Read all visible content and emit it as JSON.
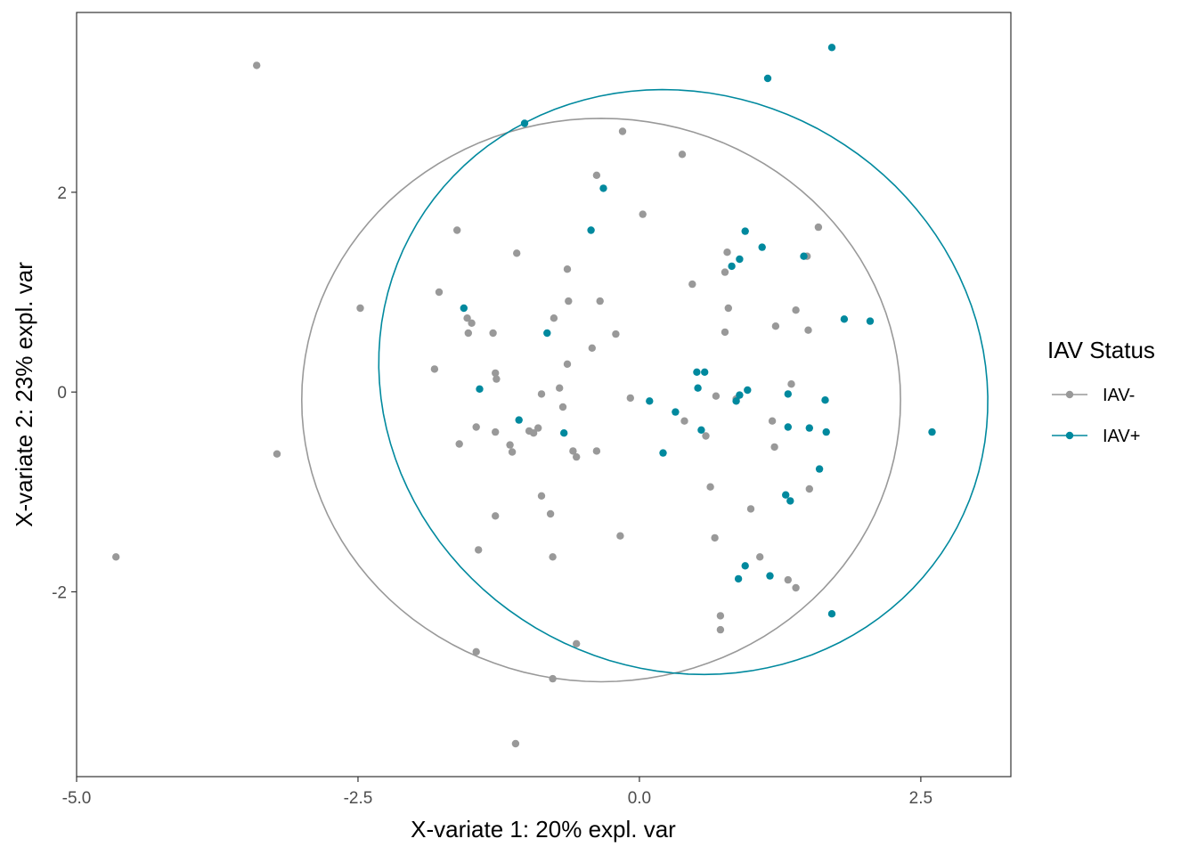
{
  "chart_data": {
    "type": "scatter",
    "xlabel": "X-variate 1: 20% expl. var",
    "ylabel": "X-variate 2: 23% expl. var",
    "xlim": [
      -5.0,
      3.3
    ],
    "ylim": [
      -3.85,
      3.8
    ],
    "x_ticks": [
      -5.0,
      -2.5,
      0.0,
      2.5
    ],
    "x_tick_labels": [
      "-5.0",
      "-2.5",
      "0.0",
      "2.5"
    ],
    "y_ticks": [
      -2,
      0,
      2
    ],
    "y_tick_labels": [
      "-2",
      "0",
      "2"
    ],
    "grid": false,
    "legend": {
      "title": "IAV Status",
      "placement": "right"
    },
    "series": [
      {
        "name": "IAV-",
        "color": "#999999",
        "ellipse": {
          "cx": -0.34,
          "cy": -0.08,
          "rx": 2.66,
          "ry": 2.82,
          "angle_deg": 0
        },
        "points": [
          [
            -3.4,
            3.27
          ],
          [
            -4.65,
            -1.65
          ],
          [
            -3.22,
            -0.62
          ],
          [
            -2.48,
            0.84
          ],
          [
            -1.78,
            1.0
          ],
          [
            -1.82,
            0.23
          ],
          [
            -1.62,
            1.62
          ],
          [
            -1.6,
            -0.52
          ],
          [
            -1.53,
            0.74
          ],
          [
            -1.52,
            0.59
          ],
          [
            -1.49,
            0.69
          ],
          [
            -1.45,
            -0.35
          ],
          [
            -1.43,
            -1.58
          ],
          [
            -1.45,
            -2.6
          ],
          [
            -1.3,
            0.59
          ],
          [
            -1.28,
            0.19
          ],
          [
            -1.27,
            0.13
          ],
          [
            -1.28,
            -0.4
          ],
          [
            -1.28,
            -1.24
          ],
          [
            -1.15,
            -0.53
          ],
          [
            -1.13,
            -0.6
          ],
          [
            -1.09,
            1.39
          ],
          [
            -1.1,
            -3.52
          ],
          [
            -0.98,
            -0.39
          ],
          [
            -0.94,
            -0.41
          ],
          [
            -0.9,
            -0.36
          ],
          [
            -0.87,
            -0.02
          ],
          [
            -0.87,
            -1.04
          ],
          [
            -0.79,
            -1.22
          ],
          [
            -0.77,
            -1.65
          ],
          [
            -0.77,
            -2.87
          ],
          [
            -0.76,
            0.74
          ],
          [
            -0.71,
            0.04
          ],
          [
            -0.68,
            -0.15
          ],
          [
            -0.64,
            1.23
          ],
          [
            -0.63,
            0.91
          ],
          [
            -0.64,
            0.28
          ],
          [
            -0.59,
            -0.59
          ],
          [
            -0.56,
            -0.65
          ],
          [
            -0.56,
            -2.52
          ],
          [
            -0.42,
            0.44
          ],
          [
            -0.38,
            2.17
          ],
          [
            -0.38,
            -0.59
          ],
          [
            -0.35,
            0.91
          ],
          [
            -0.21,
            0.58
          ],
          [
            -0.17,
            -1.44
          ],
          [
            -0.15,
            2.61
          ],
          [
            -0.08,
            -0.06
          ],
          [
            0.03,
            1.78
          ],
          [
            0.38,
            2.38
          ],
          [
            0.4,
            -0.29
          ],
          [
            0.47,
            1.08
          ],
          [
            0.59,
            -0.44
          ],
          [
            0.63,
            -0.95
          ],
          [
            0.67,
            -1.46
          ],
          [
            0.68,
            -0.04
          ],
          [
            0.72,
            -2.24
          ],
          [
            0.72,
            -2.38
          ],
          [
            0.76,
            1.2
          ],
          [
            0.76,
            0.6
          ],
          [
            0.78,
            1.4
          ],
          [
            0.79,
            0.84
          ],
          [
            0.86,
            -0.07
          ],
          [
            0.99,
            -1.17
          ],
          [
            1.07,
            -1.65
          ],
          [
            1.18,
            -0.29
          ],
          [
            1.2,
            -0.55
          ],
          [
            1.21,
            0.66
          ],
          [
            1.32,
            -1.88
          ],
          [
            1.35,
            0.08
          ],
          [
            1.39,
            -1.96
          ],
          [
            1.39,
            0.82
          ],
          [
            1.49,
            1.36
          ],
          [
            1.5,
            0.62
          ],
          [
            1.51,
            -0.97
          ],
          [
            1.59,
            1.65
          ]
        ]
      },
      {
        "name": "IAV+",
        "color": "#00899E",
        "ellipse": {
          "cx": 0.39,
          "cy": 0.1,
          "rx": 2.67,
          "ry": 2.96,
          "angle_deg": 20
        },
        "points": [
          [
            1.71,
            3.45
          ],
          [
            1.14,
            3.14
          ],
          [
            -1.02,
            2.69
          ],
          [
            -0.32,
            2.04
          ],
          [
            -0.43,
            1.62
          ],
          [
            -1.56,
            0.84
          ],
          [
            -0.82,
            0.59
          ],
          [
            -1.42,
            0.03
          ],
          [
            -1.07,
            -0.28
          ],
          [
            -0.67,
            -0.41
          ],
          [
            0.09,
            -0.09
          ],
          [
            0.21,
            -0.61
          ],
          [
            0.32,
            -0.2
          ],
          [
            0.51,
            0.2
          ],
          [
            0.58,
            0.2
          ],
          [
            0.52,
            0.04
          ],
          [
            0.55,
            -0.38
          ],
          [
            0.82,
            1.26
          ],
          [
            0.89,
            1.33
          ],
          [
            0.94,
            1.61
          ],
          [
            1.09,
            1.45
          ],
          [
            1.46,
            1.36
          ],
          [
            0.86,
            -0.09
          ],
          [
            0.89,
            -0.03
          ],
          [
            0.96,
            0.02
          ],
          [
            1.32,
            -0.02
          ],
          [
            1.32,
            -0.35
          ],
          [
            1.51,
            -0.36
          ],
          [
            1.65,
            -0.08
          ],
          [
            1.66,
            -0.4
          ],
          [
            1.6,
            -0.77
          ],
          [
            1.3,
            -1.03
          ],
          [
            1.34,
            -1.09
          ],
          [
            0.94,
            -1.74
          ],
          [
            0.88,
            -1.87
          ],
          [
            1.16,
            -1.84
          ],
          [
            1.71,
            -2.22
          ],
          [
            1.82,
            0.73
          ],
          [
            2.05,
            0.71
          ],
          [
            2.6,
            -0.4
          ]
        ]
      }
    ]
  }
}
